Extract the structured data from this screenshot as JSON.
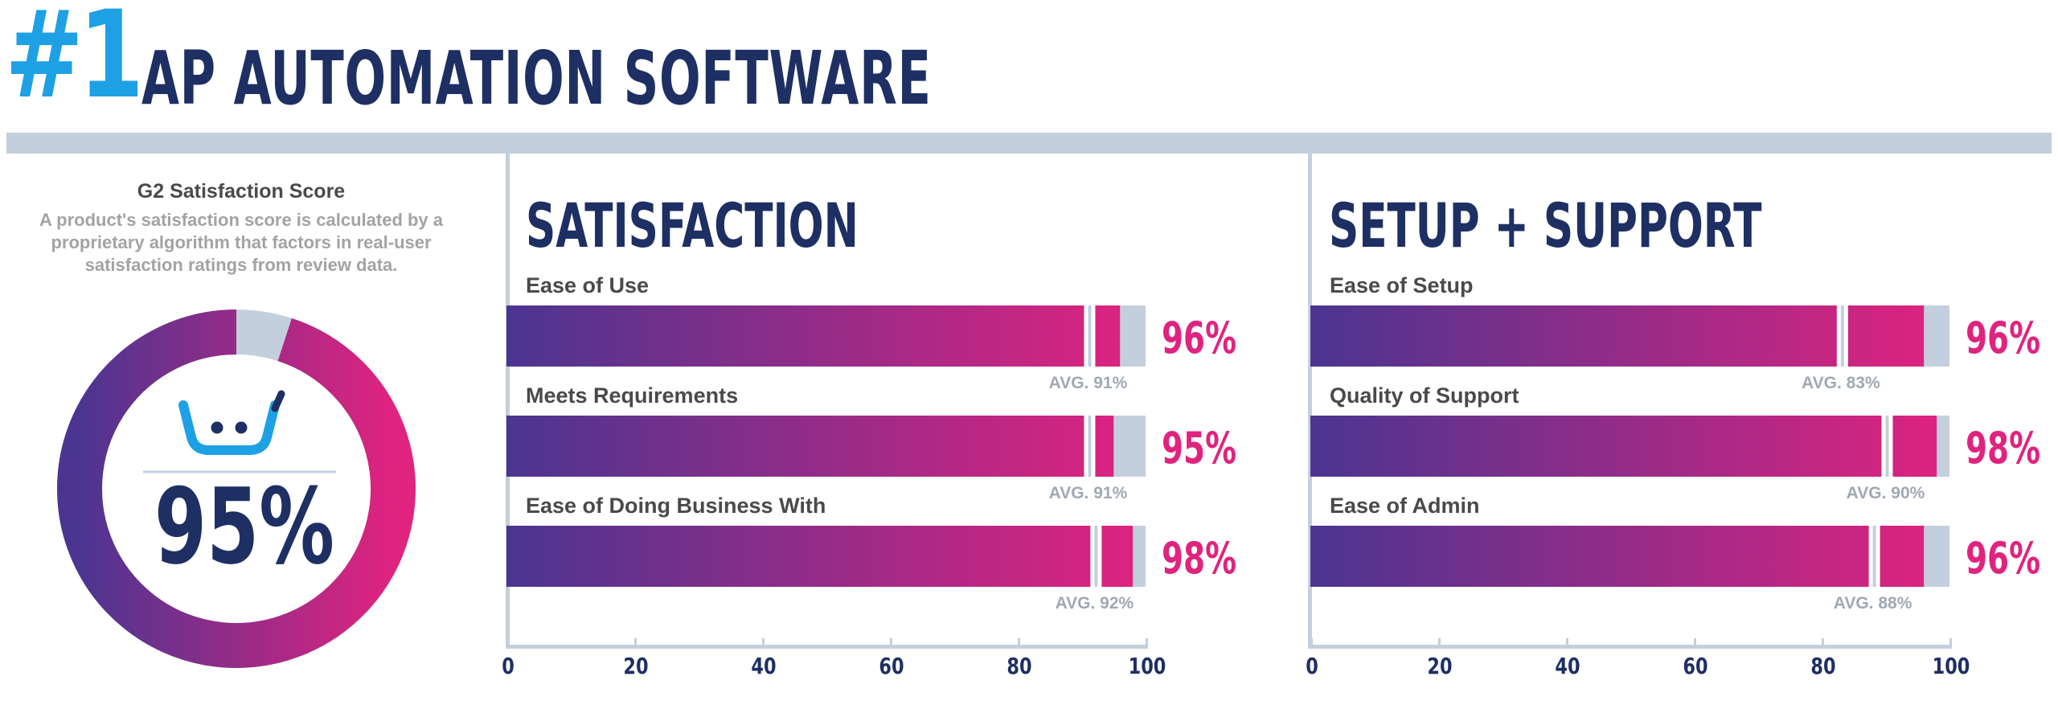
{
  "header": {
    "rank": "#1",
    "title": "AP AUTOMATION SOFTWARE"
  },
  "score": {
    "title": "G2 Satisfaction Score",
    "description": "A product's satisfaction score is calculated by a proprietary algorithm that factors in real-user satisfaction ratings from review data.",
    "value": 95,
    "value_label": "95%",
    "icon": "basket-face-icon"
  },
  "colors": {
    "gradient_start": "#4b3590",
    "gradient_end": "#e0237f",
    "track": "#c4cfdd",
    "navy": "#1e2f63",
    "accent_blue": "#1ea1e4",
    "pink": "#e0237f"
  },
  "chart_data": [
    {
      "type": "bar",
      "title": "SATISFACTION",
      "categories": [
        "Ease of Use",
        "Meets Requirements",
        "Ease of Doing Business With"
      ],
      "values": [
        96,
        95,
        98
      ],
      "value_labels": [
        "96%",
        "95%",
        "98%"
      ],
      "averages": [
        91,
        91,
        92
      ],
      "average_labels": [
        "AVG. 91%",
        "AVG. 91%",
        "AVG. 92%"
      ],
      "xlim": [
        0,
        100
      ],
      "xticks": [
        0,
        20,
        40,
        60,
        80,
        100
      ]
    },
    {
      "type": "bar",
      "title": "SETUP + SUPPORT",
      "categories": [
        "Ease of Setup",
        "Quality of Support",
        "Ease of Admin"
      ],
      "values": [
        96,
        98,
        96
      ],
      "value_labels": [
        "96%",
        "98%",
        "96%"
      ],
      "averages": [
        83,
        90,
        88
      ],
      "average_labels": [
        "AVG. 83%",
        "AVG. 90%",
        "AVG. 88%"
      ],
      "xlim": [
        0,
        100
      ],
      "xticks": [
        0,
        20,
        40,
        60,
        80,
        100
      ]
    }
  ]
}
